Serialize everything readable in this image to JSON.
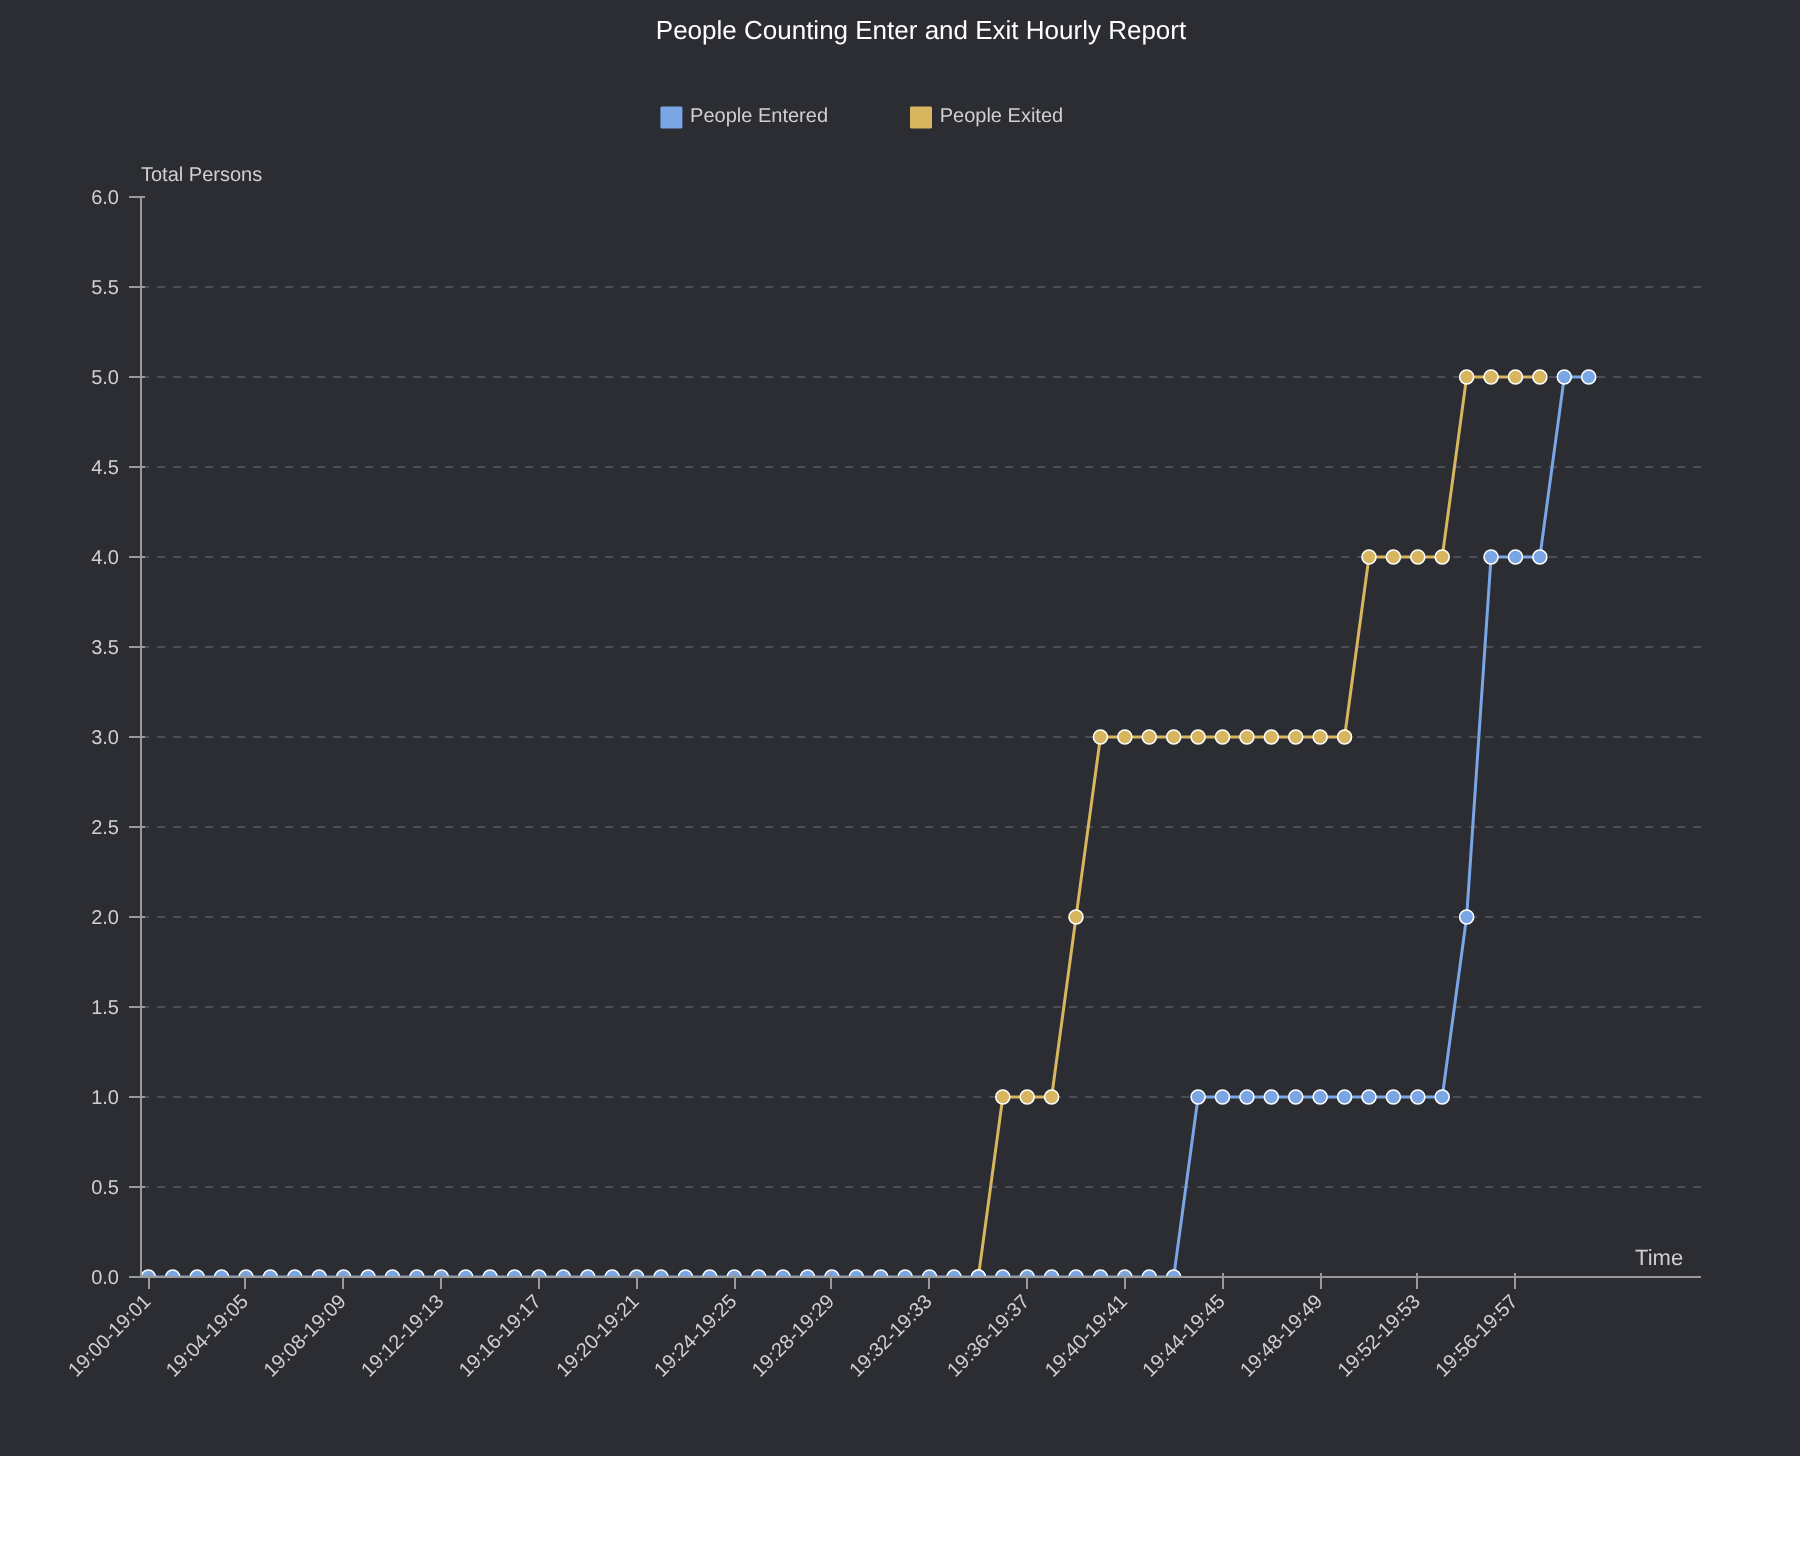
{
  "chart_data": {
    "type": "line",
    "title": "People Counting Enter and Exit Hourly Report",
    "xlabel": "Time",
    "ylabel": "Total Persons",
    "categories": [
      "19:00-19:01",
      null,
      null,
      null,
      "19:04-19:05",
      null,
      null,
      null,
      "19:08-19:09",
      null,
      null,
      null,
      "19:12-19:13",
      null,
      null,
      null,
      "19:16-19:17",
      null,
      null,
      null,
      "19:20-19:21",
      null,
      null,
      null,
      "19:24-19:25",
      null,
      null,
      null,
      "19:28-19:29",
      null,
      null,
      null,
      "19:32-19:33",
      null,
      null,
      null,
      "19:36-19:37",
      null,
      null,
      null,
      "19:40-19:41",
      null,
      null,
      null,
      "19:44-19:45",
      null,
      null,
      null,
      "19:48-19:49",
      null,
      null,
      null,
      "19:52-19:53",
      null,
      null,
      null,
      "19:56-19:57",
      null,
      null,
      null
    ],
    "series": [
      {
        "name": "People Entered",
        "color": "#7aa6e6",
        "values": [
          0,
          0,
          0,
          0,
          0,
          0,
          0,
          0,
          0,
          0,
          0,
          0,
          0,
          0,
          0,
          0,
          0,
          0,
          0,
          0,
          0,
          0,
          0,
          0,
          0,
          0,
          0,
          0,
          0,
          0,
          0,
          0,
          0,
          0,
          0,
          0,
          0,
          0,
          0,
          0,
          0,
          0,
          0,
          1,
          1,
          1,
          1,
          1,
          1,
          1,
          1,
          1,
          1,
          1,
          2,
          4,
          4,
          4,
          5,
          5
        ]
      },
      {
        "name": "People Exited",
        "color": "#d8b660",
        "values": [
          null,
          null,
          null,
          null,
          null,
          null,
          null,
          null,
          null,
          null,
          null,
          null,
          null,
          null,
          null,
          null,
          null,
          null,
          null,
          null,
          null,
          null,
          null,
          null,
          null,
          null,
          null,
          null,
          null,
          null,
          null,
          null,
          null,
          null,
          0,
          1,
          1,
          1,
          2,
          3,
          3,
          3,
          3,
          3,
          3,
          3,
          3,
          3,
          3,
          3,
          4,
          4,
          4,
          4,
          5,
          5,
          5,
          5,
          null,
          null
        ]
      }
    ],
    "ylim": [
      0,
      6
    ],
    "yticks": [
      {
        "value": 0,
        "label": "0.0"
      },
      {
        "value": 0.5,
        "label": "0.5"
      },
      {
        "value": 1,
        "label": "1.0"
      },
      {
        "value": 1.5,
        "label": "1.5"
      },
      {
        "value": 2,
        "label": "2.0"
      },
      {
        "value": 2.5,
        "label": "2.5"
      },
      {
        "value": 3,
        "label": "3.0"
      },
      {
        "value": 3.5,
        "label": "3.5"
      },
      {
        "value": 4,
        "label": "4.0"
      },
      {
        "value": 4.5,
        "label": "4.5"
      },
      {
        "value": 5,
        "label": "5.0"
      },
      {
        "value": 5.5,
        "label": "5.5"
      },
      {
        "value": 6,
        "label": "6.0"
      }
    ],
    "grid": "y",
    "legend": "top",
    "marker": "circle",
    "line_style": "solid"
  }
}
